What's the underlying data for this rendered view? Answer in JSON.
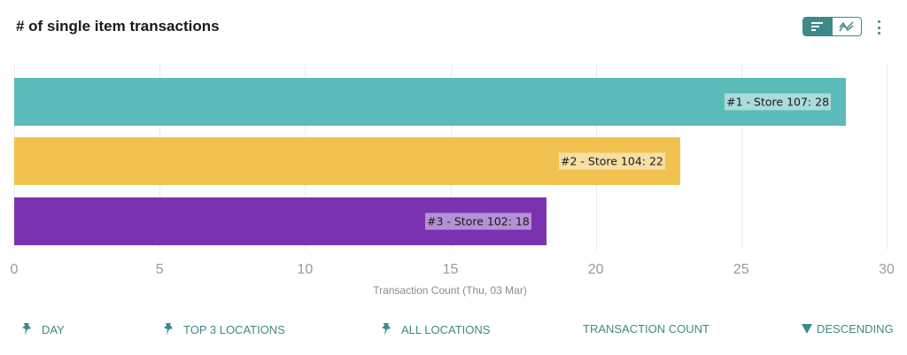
{
  "header": {
    "title": "# of single item transactions",
    "view_toggle": [
      {
        "name": "bar-chart-view",
        "icon": "bar-chart-icon",
        "active": true
      },
      {
        "name": "line-chart-view",
        "icon": "line-chart-icon",
        "active": false
      }
    ],
    "menu_icon": "more-vertical-icon"
  },
  "chart_data": {
    "type": "bar",
    "orientation": "horizontal",
    "title": "# of single item transactions",
    "xlabel": "Transaction Count (Thu, 03 Mar)",
    "ylabel": "",
    "xlim": [
      0,
      30
    ],
    "x_ticks": [
      "0",
      "5",
      "10",
      "15",
      "20",
      "25",
      "30"
    ],
    "grid": true,
    "categories": [
      "#1 - Store 107",
      "#2 - Store 104",
      "#3 - Store 102"
    ],
    "values": [
      28,
      22,
      18
    ],
    "bar_display_extent": [
      28.6,
      22.9,
      18.3
    ],
    "labels": [
      "#1 - Store 107: 28",
      "#2 - Store 104: 22",
      "#3 - Store 102: 18"
    ],
    "colors": [
      "#5bbbb9",
      "#f1c24f",
      "#7b32b0"
    ],
    "label_bg_colors": [
      "#a9dcdb",
      "#f7dfa4",
      "#b690d6"
    ]
  },
  "filters": [
    {
      "label": "DAY",
      "icon": "pin-icon"
    },
    {
      "label": "TOP 3 LOCATIONS",
      "icon": "pin-icon"
    },
    {
      "label": "ALL LOCATIONS",
      "icon": "pin-icon"
    },
    {
      "label": "TRANSACTION COUNT",
      "icon": null
    },
    {
      "label": "DESCENDING",
      "icon": "sort-descending-triangle-icon"
    }
  ],
  "colors": {
    "accent": "#3d8a86",
    "tick_text": "#9a9a9a",
    "gridline": "#ececec"
  }
}
